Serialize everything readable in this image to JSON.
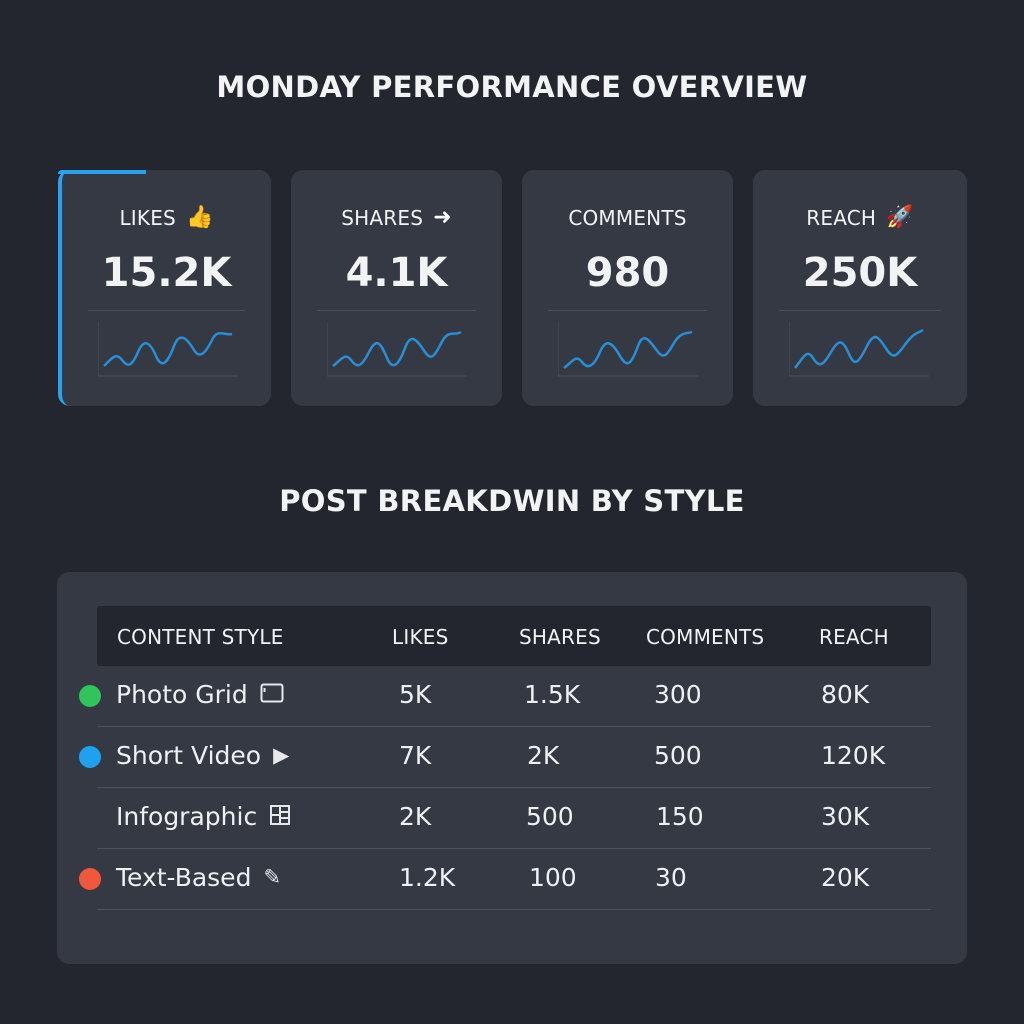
{
  "header": {
    "title": "MONDAY PERFORMANCE OVERVIEW"
  },
  "accent_color": "#2aa3ee",
  "metrics": [
    {
      "label": "LIKES",
      "value": "15.2K",
      "icon": "thumbs-up-icon",
      "highlighted": true
    },
    {
      "label": "SHARES",
      "value": "4.1K",
      "icon": "arrow-right-icon"
    },
    {
      "label": "COMMENTS",
      "value": "980",
      "icon": ""
    },
    {
      "label": "REACH",
      "value": "250K",
      "icon": "rocket-icon"
    }
  ],
  "section": {
    "title": "POST BREAKDWIN BY STYLE"
  },
  "table": {
    "headers": [
      "CONTENT STYLE",
      "LIKES",
      "SHARES",
      "COMMENTS",
      "REACH"
    ],
    "rows": [
      {
        "style": "Photo Grid",
        "icon": "photo-frame-icon",
        "dot": "#2fc55a",
        "likes": "5K",
        "shares": "1.5K",
        "comments": "300",
        "reach": "80K"
      },
      {
        "style": "Short Video",
        "icon": "play-icon",
        "dot": "#1ea2f0",
        "likes": "7K",
        "shares": "2K",
        "comments": "500",
        "reach": "120K"
      },
      {
        "style": "Infographic",
        "icon": "grid-icon",
        "dot": "",
        "likes": "2K",
        "shares": "500",
        "comments": "150",
        "reach": "30K"
      },
      {
        "style": "Text-Based",
        "icon": "pencil-icon",
        "dot": "#f0573d",
        "likes": "1.2K",
        "shares": "100",
        "comments": "30",
        "reach": "20K"
      }
    ]
  }
}
